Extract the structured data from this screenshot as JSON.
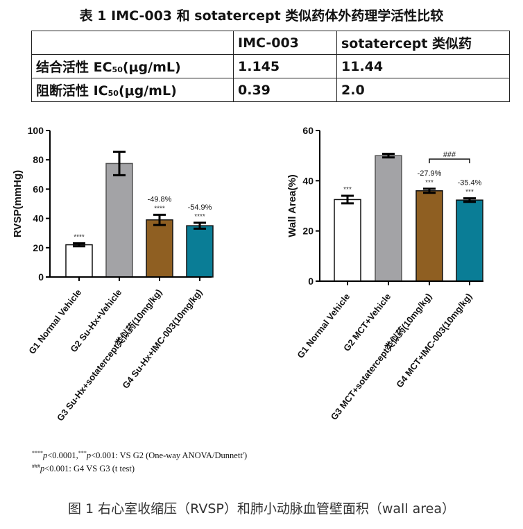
{
  "table": {
    "title": "表 1 IMC-003 和 sotatercept 类似药体外药理学活性比较",
    "header": [
      "",
      "IMC-003",
      "sotatercept 类似药"
    ],
    "rows": [
      {
        "label": "结合活性 EC",
        "sub": "50",
        "unit": "(μg/mL)",
        "v1": "1.145",
        "v2": "11.44"
      },
      {
        "label": "阻断活性 IC",
        "sub": "50",
        "unit": "(μg/mL)",
        "v1": "0.39",
        "v2": "2.0"
      }
    ]
  },
  "chart_data": [
    {
      "type": "bar",
      "ylabel": "RVSP(mmHg)",
      "ylim": [
        0,
        100
      ],
      "yticks": [
        0,
        20,
        40,
        60,
        80,
        100
      ],
      "categories": [
        "G1 Normal Vehicle",
        "G2 Su-Hx+Vehicle",
        "G3 Su-Hx+sotatercept类似药(10mg/kg)",
        "G4 Su-Hx+IMC-003(10mg/kg)"
      ],
      "values": [
        22,
        77.5,
        39,
        35
      ],
      "errors": [
        1,
        8,
        3.5,
        2
      ],
      "colors": [
        "#ffffff",
        "#a3a3a6",
        "#8f5f22",
        "#0a7d96"
      ],
      "sig": [
        "****",
        "",
        "****",
        "****"
      ],
      "pct": [
        "",
        "",
        "-49.8%",
        "-54.9%"
      ]
    },
    {
      "type": "bar",
      "ylabel": "Wall Area(%)",
      "ylim": [
        0,
        60
      ],
      "yticks": [
        0,
        20,
        40,
        60
      ],
      "categories": [
        "G1 Normal Vehicle",
        "G2 MCT+Vehicle",
        "G3 MCT+sotatercept类似药(10mg/kg)",
        "G4 MCT+IMC-003(10mg/kg)"
      ],
      "values": [
        32.5,
        50,
        36,
        32.3
      ],
      "errors": [
        1.5,
        0.7,
        0.8,
        0.7
      ],
      "colors": [
        "#ffffff",
        "#a3a3a6",
        "#8f5f22",
        "#0a7d96"
      ],
      "sig": [
        "***",
        "",
        "***",
        "***"
      ],
      "pct": [
        "",
        "",
        "-27.9%",
        "-35.4%"
      ],
      "bracket": {
        "from": 2,
        "to": 3,
        "label": "###"
      }
    }
  ],
  "footnotes": {
    "l1a": "****",
    "l1b": "p",
    "l1c": "<0.0001,",
    "l1d": "***",
    "l1e": "p",
    "l1f": "<0.001: VS G2 (One-way ANOVA/Dunnett')",
    "l2a": "###",
    "l2b": "p",
    "l2c": "<0.001:  G4 VS G3 (t test)"
  },
  "caption": "图 1 右心室收缩压（RVSP）和肺小动脉血管壁面积（wall area）"
}
